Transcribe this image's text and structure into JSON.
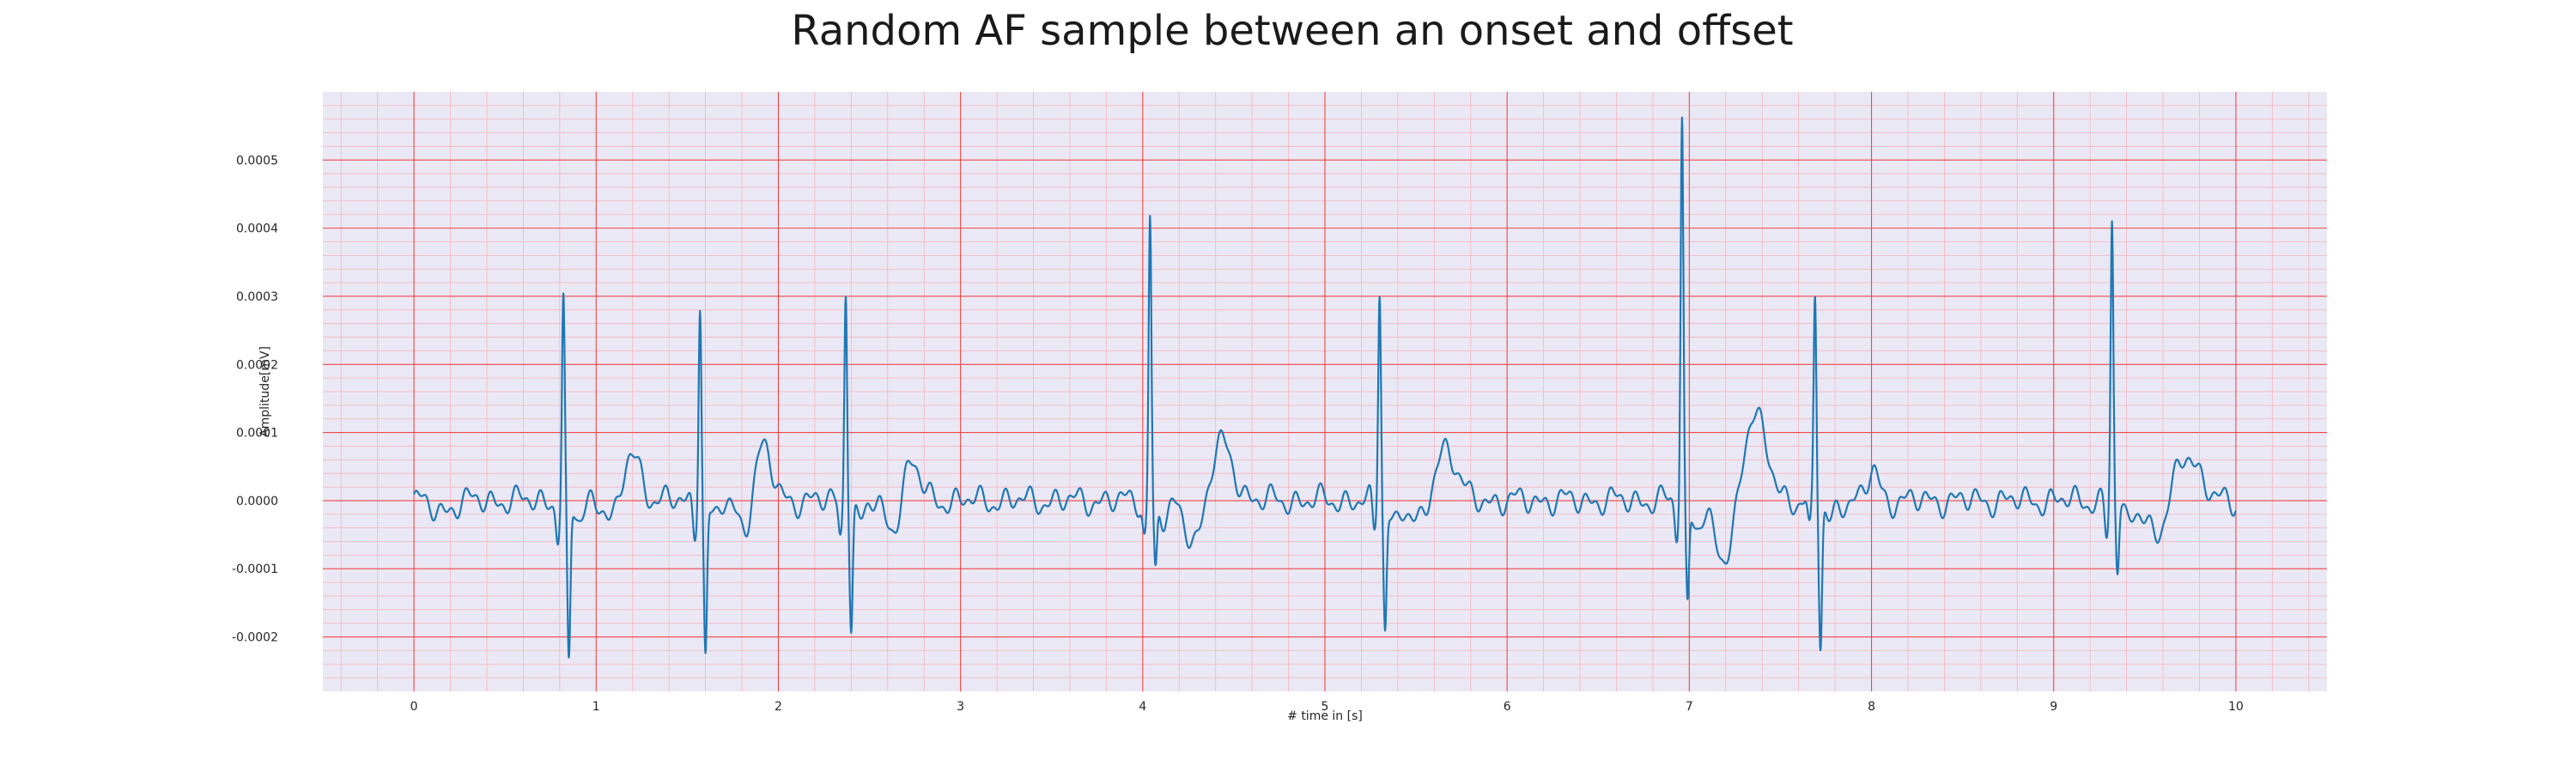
{
  "chart_data": {
    "type": "line",
    "title": "Random AF sample between an onset and offset",
    "xlabel": "# time in [s]",
    "ylabel": "Amplitude[mV]",
    "xlim": [
      -0.5,
      10.5
    ],
    "ylim": [
      -0.00028,
      0.0006
    ],
    "xticks": [
      0,
      1,
      2,
      3,
      4,
      5,
      6,
      7,
      8,
      9,
      10
    ],
    "xtick_labels": [
      "0",
      "1",
      "2",
      "3",
      "4",
      "5",
      "6",
      "7",
      "8",
      "9",
      "10"
    ],
    "yticks": [
      -0.0002,
      -0.0001,
      0.0,
      0.0001,
      0.0002,
      0.0003,
      0.0004,
      0.0005
    ],
    "ytick_labels": [
      "-0.0002",
      "-0.0001",
      "0.0000",
      "0.0001",
      "0.0002",
      "0.0003",
      "0.0004",
      "0.0005"
    ],
    "grid": true,
    "minor_grid": true,
    "colors": {
      "plot_bg": "#eae8f4",
      "major_grid": "#f04646",
      "minor_grid": "#f5b4be",
      "line": "#1f77b4"
    },
    "series": [
      {
        "color": "#1f77b4",
        "beats": [
          {
            "t": 0.82,
            "peak": 0.00029,
            "trough": -0.00024
          },
          {
            "t": 1.57,
            "peak": 0.0003,
            "trough": -0.00022
          },
          {
            "t": 2.37,
            "peak": 0.00032,
            "trough": -0.00018
          },
          {
            "t": 4.04,
            "peak": 0.00042,
            "trough": -0.0001
          },
          {
            "t": 5.3,
            "peak": 0.00031,
            "trough": -0.00018
          },
          {
            "t": 6.96,
            "peak": 0.00056,
            "trough": -0.00015
          },
          {
            "t": 7.69,
            "peak": 0.0003,
            "trough": -0.00021
          },
          {
            "t": 9.32,
            "peak": 0.00041,
            "trough": -0.0001
          }
        ],
        "waves": [
          {
            "t": 1.19,
            "amp": 7.5e-05,
            "w": 0.05
          },
          {
            "t": 1.91,
            "amp": 8e-05,
            "w": 0.05
          },
          {
            "t": 2.72,
            "amp": 6.5e-05,
            "w": 0.05
          },
          {
            "t": 4.42,
            "amp": 9e-05,
            "w": 0.07
          },
          {
            "t": 5.66,
            "amp": 8e-05,
            "w": 0.06
          },
          {
            "t": 7.35,
            "amp": 0.00013,
            "w": 0.07
          },
          {
            "t": 8.01,
            "amp": 4.5e-05,
            "w": 0.03
          },
          {
            "t": 9.72,
            "amp": 7.5e-05,
            "w": 0.07
          }
        ],
        "dips": [
          {
            "t": 1.11,
            "amp": -4e-05,
            "w": 0.04
          },
          {
            "t": 1.82,
            "amp": -5e-05,
            "w": 0.04
          },
          {
            "t": 2.64,
            "amp": -5e-05,
            "w": 0.05
          },
          {
            "t": 4.3,
            "amp": -7e-05,
            "w": 0.06
          },
          {
            "t": 5.52,
            "amp": -4e-05,
            "w": 0.05
          },
          {
            "t": 7.2,
            "amp": -0.0001,
            "w": 0.06
          },
          {
            "t": 9.58,
            "amp": -6e-05,
            "w": 0.06
          }
        ]
      }
    ]
  }
}
